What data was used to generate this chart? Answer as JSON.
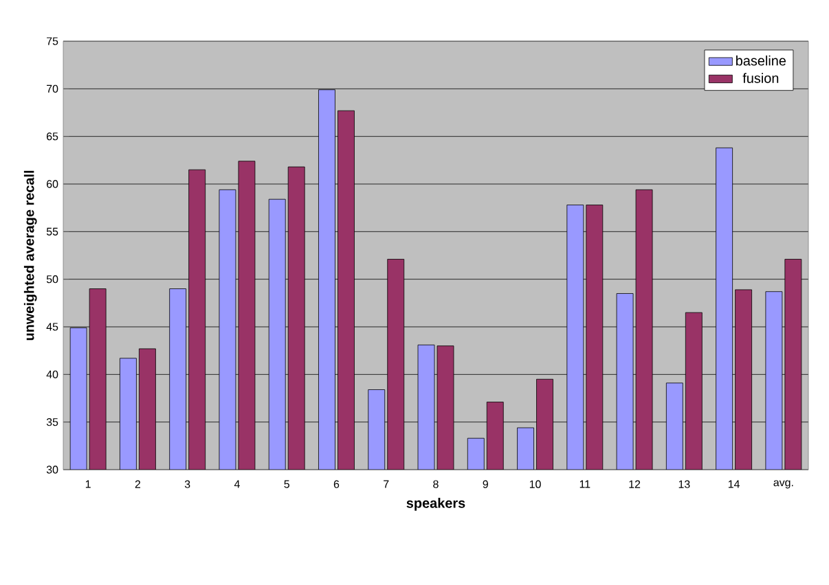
{
  "chart_data": {
    "type": "bar",
    "xlabel": "speakers",
    "ylabel": "unweighted average recall",
    "categories": [
      "1",
      "2",
      "3",
      "4",
      "5",
      "6",
      "7",
      "8",
      "9",
      "10",
      "11",
      "12",
      "13",
      "14",
      "avg."
    ],
    "series": [
      {
        "name": "baseline",
        "color": "#9999ff",
        "values": [
          44.9,
          41.7,
          49.0,
          59.4,
          58.4,
          69.9,
          38.4,
          43.1,
          33.3,
          34.4,
          57.8,
          48.5,
          39.1,
          63.8,
          48.7
        ]
      },
      {
        "name": "fusion",
        "color": "#993366",
        "values": [
          49.0,
          42.7,
          61.5,
          62.4,
          61.8,
          67.7,
          52.1,
          43.0,
          37.1,
          39.5,
          57.8,
          59.4,
          46.5,
          48.9,
          52.1
        ]
      }
    ],
    "ylim": [
      30,
      75
    ],
    "yticks": [
      30,
      35,
      40,
      45,
      50,
      55,
      60,
      65,
      70,
      75
    ],
    "grid": "y",
    "legend": "top right"
  }
}
